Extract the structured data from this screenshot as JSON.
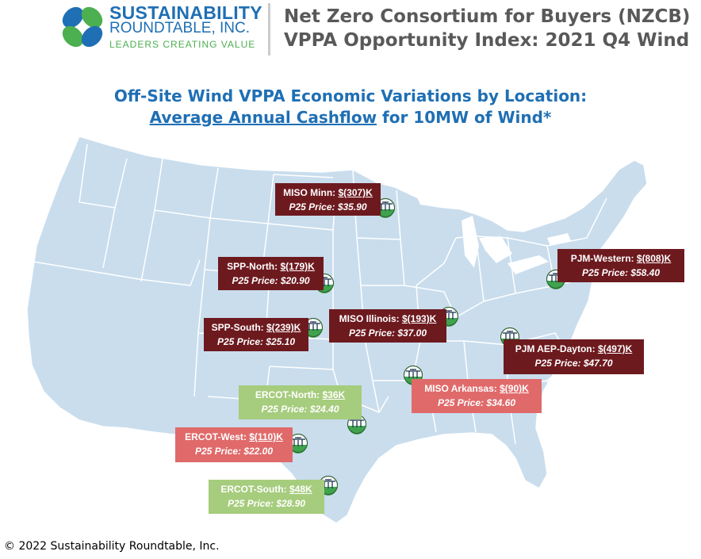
{
  "logo": {
    "line1": "SUSTAINABILITY",
    "line2": "ROUNDTABLE, INC.",
    "line3": "LEADERS CREATING VALUE",
    "colors": {
      "blue": "#1f6fb4",
      "green": "#4caf50"
    }
  },
  "header": {
    "title_line1": "Net Zero Consortium for Buyers (NZCB)",
    "title_line2": "VPPA Opportunity Index: 2021 Q4 Wind"
  },
  "subtitle": {
    "line1": "Off-Site Wind VPPA Economic Variations by Location:",
    "line2_underlined": "Average Annual Cashflow",
    "line2_rest": " for 10MW of Wind*"
  },
  "map": {
    "icon": "wind-turbine-icon",
    "colors": {
      "land": "#c9dded",
      "border": "#ffffff"
    }
  },
  "locations": [
    {
      "id": "miso-minn",
      "name": "MISO Minn: ",
      "cashflow": "$(307)K",
      "price": "P25 Price: $35.90",
      "color": "#6d1a1f"
    },
    {
      "id": "spp-north",
      "name": "SPP-North: ",
      "cashflow": "$(179)K",
      "price": "P25 Price: $20.90",
      "color": "#6d1a1f"
    },
    {
      "id": "spp-south",
      "name": "SPP-South: ",
      "cashflow": "$(239)K",
      "price": "P25 Price: $25.10",
      "color": "#6d1a1f"
    },
    {
      "id": "miso-illinois",
      "name": "MISO Illinois: ",
      "cashflow": "$(193)K",
      "price": "P25 Price: $37.00",
      "color": "#6d1a1f"
    },
    {
      "id": "pjm-western",
      "name": "PJM-Western: ",
      "cashflow": "$(808)K",
      "price": "P25 Price: $58.40",
      "color": "#6d1a1f"
    },
    {
      "id": "pjm-aep-dayton",
      "name": "PJM AEP-Dayton: ",
      "cashflow": "$(497)K",
      "price": "P25 Price: $47.70",
      "color": "#6d1a1f"
    },
    {
      "id": "miso-arkansas",
      "name": "MISO Arkansas: ",
      "cashflow": "$(90)K",
      "price": "P25 Price: $34.60",
      "color": "#e06a6a"
    },
    {
      "id": "ercot-north",
      "name": "ERCOT-North: ",
      "cashflow": "$36K",
      "price": "P25 Price: $24.40",
      "color": "#a6cc7d"
    },
    {
      "id": "ercot-west",
      "name": "ERCOT-West: ",
      "cashflow": "$(110)K",
      "price": "P25 Price: $22.00",
      "color": "#e06a6a"
    },
    {
      "id": "ercot-south",
      "name": "ERCOT-South: ",
      "cashflow": "$48K",
      "price": "P25 Price: $28.90",
      "color": "#a6cc7d"
    }
  ],
  "footer": "© 2022 Sustainability Roundtable, Inc."
}
